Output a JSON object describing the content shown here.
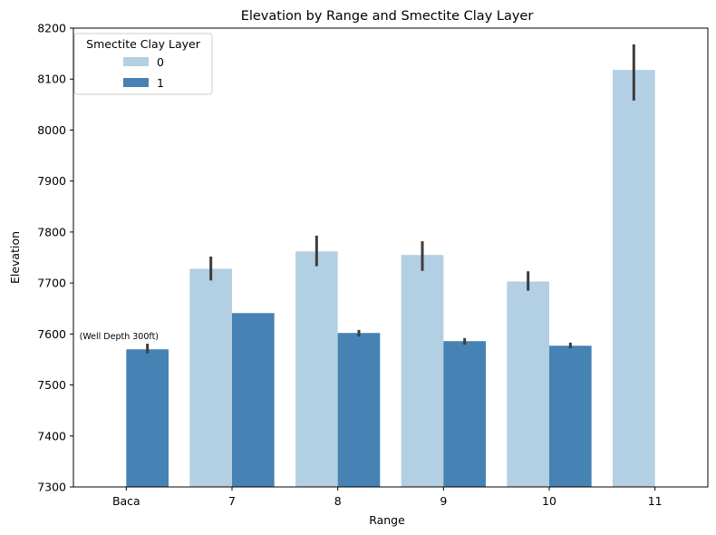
{
  "chart_data": {
    "type": "bar",
    "title": "Elevation by Range and Smectite Clay Layer",
    "xlabel": "Range",
    "ylabel": "Elevation",
    "categories": [
      "Baca",
      "7",
      "8",
      "9",
      "10",
      "11"
    ],
    "ylim": [
      7300,
      8200
    ],
    "yticks": [
      7300,
      7400,
      7500,
      7600,
      7700,
      7800,
      7900,
      8000,
      8100,
      8200
    ],
    "grid": false,
    "legend": {
      "title": "Smectite Clay Layer",
      "placement": "top-left"
    },
    "series": [
      {
        "name": "0",
        "color": "#b3cfe3",
        "values": [
          null,
          7728,
          7762,
          7755,
          7703,
          8118
        ],
        "err_low": [
          null,
          7705,
          7733,
          7724,
          7685,
          8058
        ],
        "err_high": [
          null,
          7752,
          7793,
          7782,
          7723,
          8168
        ]
      },
      {
        "name": "1",
        "color": "#4682b4",
        "values": [
          7570,
          7641,
          7602,
          7586,
          7577,
          null
        ],
        "err_low": [
          7562,
          null,
          7595,
          7579,
          7572,
          null
        ],
        "err_high": [
          7581,
          null,
          7608,
          7592,
          7583,
          null
        ]
      }
    ],
    "annotations": [
      {
        "text": "(Well Depth 300ft)",
        "category": "Baca",
        "y": 7595
      }
    ]
  }
}
